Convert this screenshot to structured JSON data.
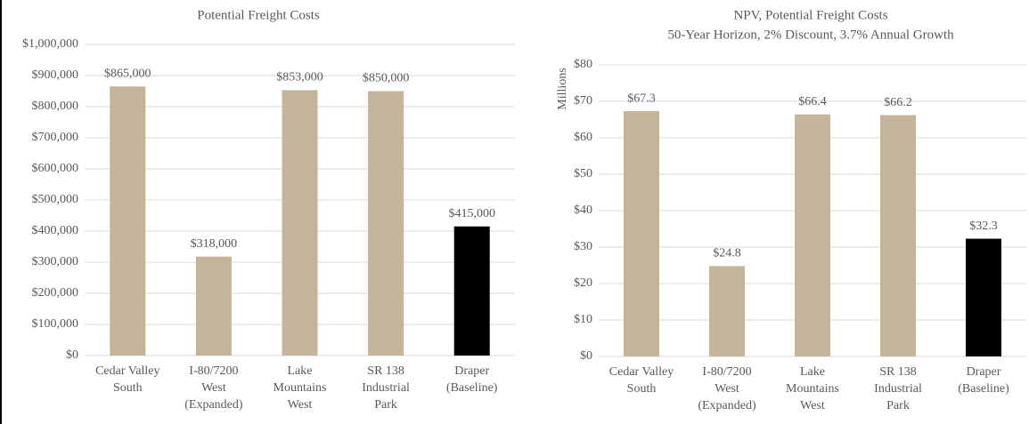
{
  "chart_data": [
    {
      "type": "bar",
      "title": "Potential Freight Costs",
      "categories": [
        "Cedar Valley\nSouth",
        "I-80/7200\nWest\n(Expanded)",
        "Lake\nMountains\nWest",
        "SR 138\nIndustrial\nPark",
        "Draper\n(Baseline)"
      ],
      "values": [
        865000,
        318000,
        853000,
        850000,
        415000
      ],
      "value_labels": [
        "$865,000",
        "$318,000",
        "$853,000",
        "$850,000",
        "$415,000"
      ],
      "colors": [
        "#c4b59a",
        "#c4b59a",
        "#c4b59a",
        "#c4b59a",
        "#000000"
      ],
      "ylim": [
        0,
        1000000
      ],
      "yticks": [
        {
          "value": 0,
          "label": "$0"
        },
        {
          "value": 100000,
          "label": "$100,000"
        },
        {
          "value": 200000,
          "label": "$200,000"
        },
        {
          "value": 300000,
          "label": "$300,000"
        },
        {
          "value": 400000,
          "label": "$400,000"
        },
        {
          "value": 500000,
          "label": "$500,000"
        },
        {
          "value": 600000,
          "label": "$600,000"
        },
        {
          "value": 700000,
          "label": "$700,000"
        },
        {
          "value": 800000,
          "label": "$800,000"
        },
        {
          "value": 900000,
          "label": "$900,000"
        },
        {
          "value": 1000000,
          "label": "$1,000,000"
        }
      ],
      "grid": true
    },
    {
      "type": "bar",
      "title": "NPV, Potential Freight Costs",
      "subtitle": "50-Year Horizon, 2% Discount, 3.7% Annual Growth",
      "y_label": "Millions",
      "categories": [
        "Cedar Valley\nSouth",
        "I-80/7200\nWest\n(Expanded)",
        "Lake\nMountains\nWest",
        "SR 138\nIndustrial\nPark",
        "Draper\n(Baseline)"
      ],
      "values": [
        67.3,
        24.8,
        66.4,
        66.2,
        32.3
      ],
      "value_labels": [
        "$67.3",
        "$24.8",
        "$66.4",
        "$66.2",
        "$32.3"
      ],
      "colors": [
        "#c4b59a",
        "#c4b59a",
        "#c4b59a",
        "#c4b59a",
        "#000000"
      ],
      "ylim": [
        0,
        80
      ],
      "yticks": [
        {
          "value": 0,
          "label": "$0"
        },
        {
          "value": 10,
          "label": "$10"
        },
        {
          "value": 20,
          "label": "$20"
        },
        {
          "value": 30,
          "label": "$30"
        },
        {
          "value": 40,
          "label": "$40"
        },
        {
          "value": 50,
          "label": "$50"
        },
        {
          "value": 60,
          "label": "$60"
        },
        {
          "value": 70,
          "label": "$70"
        },
        {
          "value": 80,
          "label": "$80"
        }
      ],
      "grid": true
    }
  ]
}
